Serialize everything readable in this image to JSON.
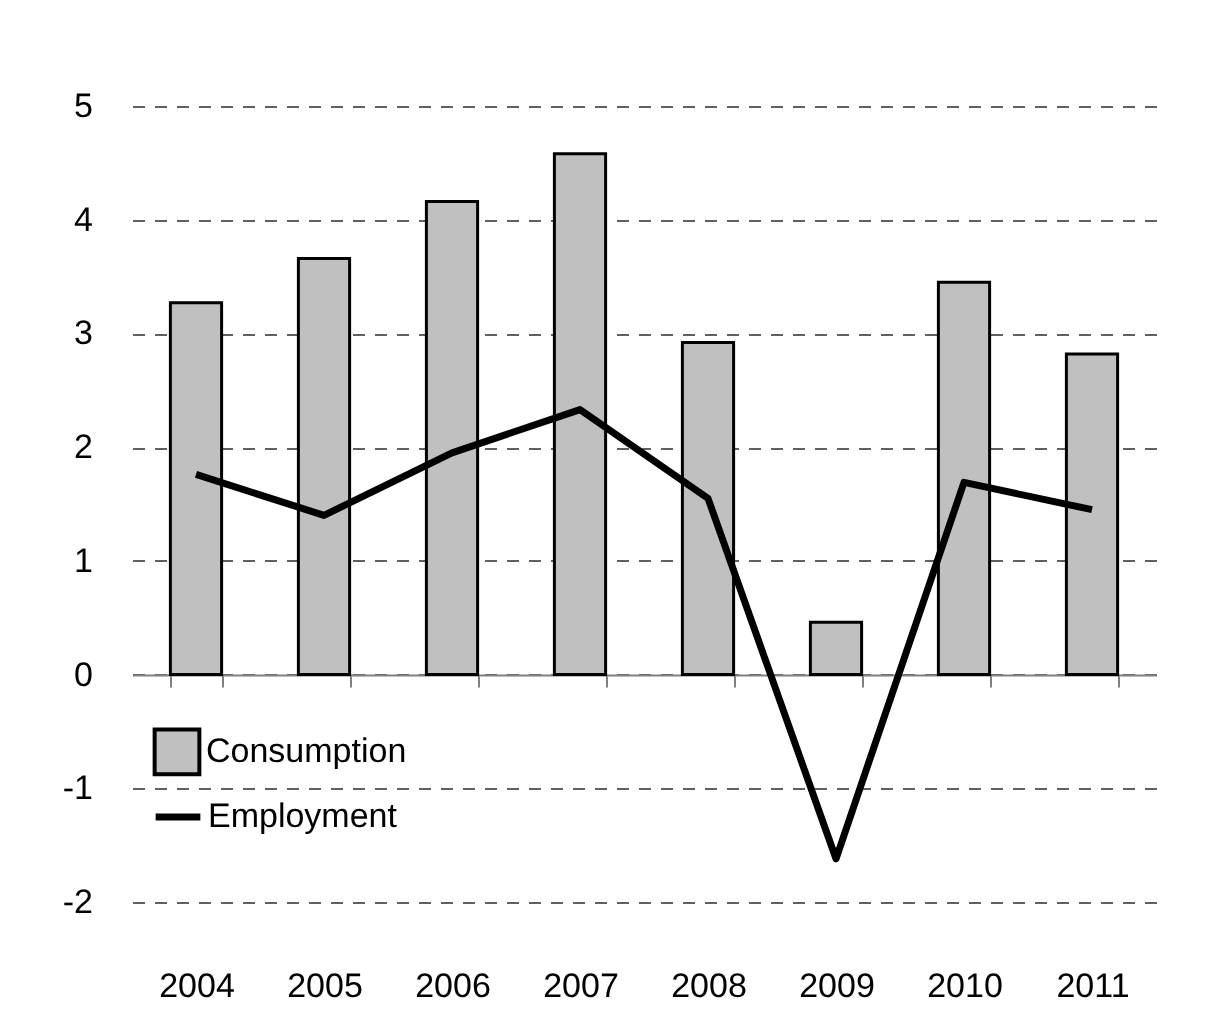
{
  "chart_data": {
    "type": "bar",
    "categories": [
      "2004",
      "2005",
      "2006",
      "2007",
      "2008",
      "2009",
      "2010",
      "2011"
    ],
    "series": [
      {
        "name": "Consumption",
        "color": "#c0c0c0",
        "values": [
          3.27,
          3.66,
          4.16,
          4.58,
          2.92,
          0.46,
          3.45,
          2.82
        ]
      },
      {
        "name": "Employment",
        "type": "line",
        "color": "#000000",
        "values": [
          1.76,
          1.4,
          1.95,
          2.33,
          1.55,
          -1.62,
          1.69,
          1.45
        ]
      }
    ],
    "ylim": [
      -2,
      5
    ],
    "yticks": [
      -2,
      -1,
      0,
      1,
      2,
      3,
      4,
      5
    ],
    "grid": "y",
    "legend": "bottom left",
    "line_style": "solid",
    "marker": "none"
  }
}
